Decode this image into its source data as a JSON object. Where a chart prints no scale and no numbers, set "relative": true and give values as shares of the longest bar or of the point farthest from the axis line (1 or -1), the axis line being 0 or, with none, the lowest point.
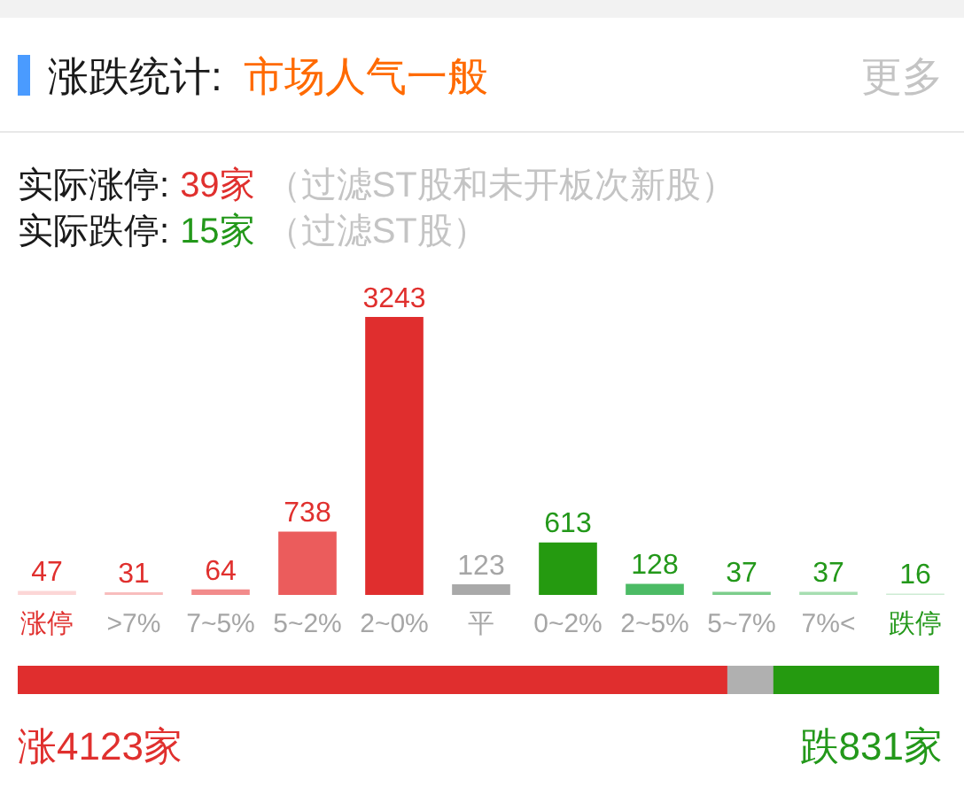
{
  "chart_data": [
    {
      "type": "bar",
      "title": "涨跌统计:",
      "subtitle": "市场人气一般",
      "categories": [
        "涨停",
        ">7%",
        "7~5%",
        "5~2%",
        "2~0%",
        "平",
        "0~2%",
        "2~5%",
        "5~7%",
        "7%<",
        "跌停"
      ],
      "values": [
        47,
        31,
        64,
        738,
        3243,
        123,
        613,
        128,
        37,
        37,
        16
      ],
      "colors": [
        "#fcd6d6",
        "#f8bdbd",
        "#f28b8b",
        "#eb5c5c",
        "#e02e2e",
        "#a9a9a9",
        "#259a10",
        "#4cbb65",
        "#7ccd8b",
        "#a6deb1",
        "#cdebd3"
      ],
      "data_labels": true,
      "tick_labels": "x",
      "annotations": [
        "更多",
        "实际涨停:",
        "39家",
        "（过滤ST股和未开板次新股）",
        "实际跌停:",
        "15家",
        "（过滤ST股）"
      ]
    },
    {
      "type": "bar",
      "orientation": "horizontal",
      "stacked": true,
      "relative": true,
      "tick_labels": false,
      "categories": [
        null
      ],
      "series": [
        {
          "color": "#e02e2e",
          "values": [
            0.77
          ]
        },
        {
          "color": "#b0b0b0",
          "values": [
            0.05
          ]
        },
        {
          "color": "#259a10",
          "values": [
            0.18
          ]
        }
      ],
      "annotations": [
        "涨4123家",
        "跌831家"
      ]
    }
  ]
}
